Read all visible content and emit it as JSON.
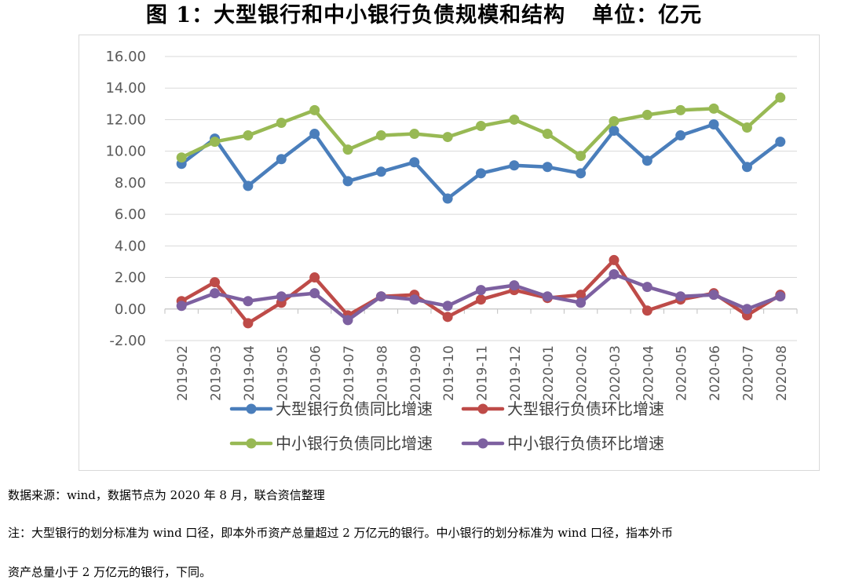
{
  "title": "图 1：大型银行和中小银行负债规模和结构",
  "unit": "单位：亿元",
  "chart_data": {
    "type": "line",
    "x": [
      "2019-02",
      "2019-03",
      "2019-04",
      "2019-05",
      "2019-06",
      "2019-07",
      "2019-08",
      "2019-09",
      "2019-10",
      "2019-11",
      "2019-12",
      "2020-01",
      "2020-02",
      "2020-03",
      "2020-04",
      "2020-05",
      "2020-06",
      "2020-07",
      "2020-08"
    ],
    "ylim": [
      -2,
      16
    ],
    "yticks": [
      "16.00",
      "14.00",
      "12.00",
      "10.00",
      "8.00",
      "6.00",
      "4.00",
      "2.00",
      "0.00",
      "-2.00"
    ],
    "legend_position": "bottom",
    "series": [
      {
        "name": "大型银行负债同比增速",
        "color": "#4a7ebb",
        "values": [
          9.2,
          10.8,
          7.8,
          9.5,
          11.1,
          8.1,
          8.7,
          9.3,
          7.0,
          8.6,
          9.1,
          9.0,
          8.6,
          11.3,
          9.4,
          11.0,
          11.7,
          9.0,
          10.6
        ]
      },
      {
        "name": "大型银行负债环比增速",
        "color": "#be4b48",
        "values": [
          0.5,
          1.7,
          -0.9,
          0.4,
          2.0,
          -0.4,
          0.8,
          0.9,
          -0.5,
          0.6,
          1.2,
          0.7,
          0.9,
          3.1,
          -0.1,
          0.6,
          1.0,
          -0.4,
          0.9
        ]
      },
      {
        "name": "中小银行负债同比增速",
        "color": "#98b954",
        "values": [
          9.6,
          10.6,
          11.0,
          11.8,
          12.6,
          10.1,
          11.0,
          11.1,
          10.9,
          11.6,
          12.0,
          11.1,
          9.7,
          11.9,
          12.3,
          12.6,
          12.7,
          11.5,
          13.4
        ]
      },
      {
        "name": "中小银行负债环比增速",
        "color": "#7d60a0",
        "values": [
          0.2,
          1.0,
          0.5,
          0.8,
          1.0,
          -0.7,
          0.8,
          0.6,
          0.2,
          1.2,
          1.5,
          0.8,
          0.4,
          2.2,
          1.4,
          0.8,
          0.9,
          0.0,
          0.8
        ]
      }
    ]
  },
  "notes": {
    "source": "数据来源：wind，数据节点为 2020 年 8 月，联合资信整理",
    "line1": "注：大型银行的划分标准为 wind 口径，即本外币资产总量超过 2 万亿元的银行。中小银行的划分标准为 wind 口径，指本外币",
    "line2": "资产总量小于 2 万亿元的银行，下同。"
  }
}
